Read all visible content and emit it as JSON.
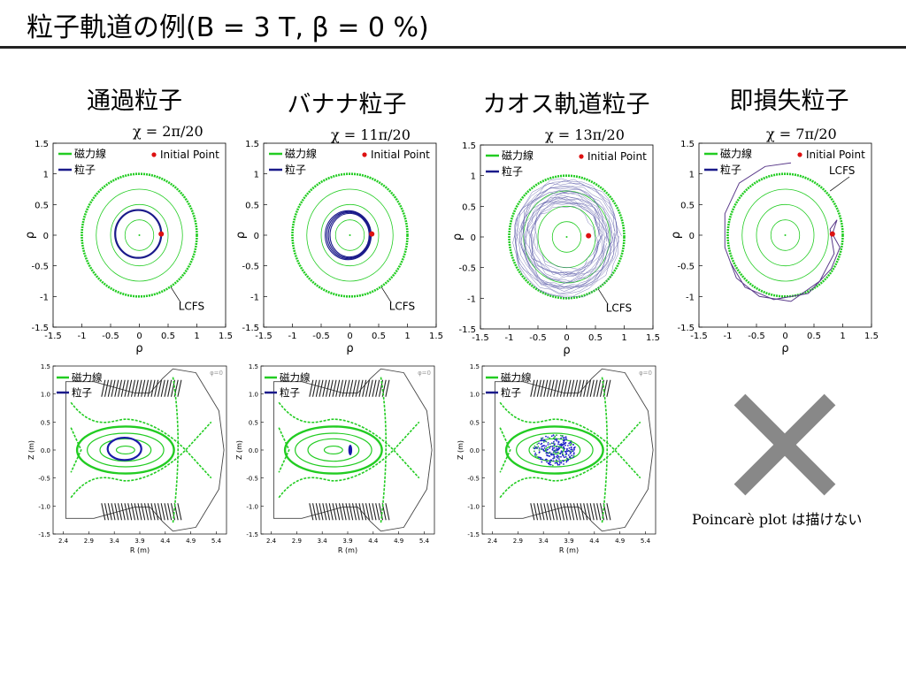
{
  "slide": {
    "title": "粒子軌道の例(B =  3 T, β = 0 %)",
    "column_titles": [
      "通過粒子",
      "バナナ粒子",
      "カオス軌道粒子",
      "即損失粒子"
    ],
    "pitch_labels": [
      "χ = 2π/20",
      "χ = 11π/20",
      "χ = 13π/20",
      "χ = 7π/20"
    ],
    "note": "Poincarè plot は描けない",
    "colors": {
      "field_line": "#22cc22",
      "particle": "#1a1a8a",
      "initial_point": "#dd1111",
      "cross": "#888888"
    }
  },
  "chart_data": [
    {
      "type": "scatter",
      "panel": "rho-plane",
      "xlabel": "ρ",
      "ylabel": "ρ",
      "xlim": [
        -1.5,
        1.5
      ],
      "ylim": [
        -1.5,
        1.5
      ],
      "xticks": [
        "-1.5",
        "-1",
        "-0.5",
        "0",
        "0.5",
        "1",
        "1.5"
      ],
      "yticks": [
        "1.5",
        "1",
        "0.5",
        "0",
        "-0.5",
        "-1",
        "-1.5"
      ],
      "legend": [
        "磁力線",
        "粒子",
        "Initial Point"
      ],
      "annotation": "LCFS",
      "field_line_radii": [
        0.25,
        0.5,
        0.75,
        1.0
      ],
      "initial_point": [
        0.38,
        0.02
      ],
      "orbit": "passing",
      "title": "χ = 2π/20"
    },
    {
      "type": "scatter",
      "panel": "rho-plane",
      "xlabel": "ρ",
      "ylabel": "ρ",
      "xlim": [
        -1.5,
        1.5
      ],
      "ylim": [
        -1.5,
        1.5
      ],
      "xticks": [
        "-1.5",
        "-1",
        "-0.5",
        "0",
        "0.5",
        "1",
        "1.5"
      ],
      "yticks": [
        "1.5",
        "1",
        "0.5",
        "0",
        "-0.5",
        "-1",
        "-1.5"
      ],
      "legend": [
        "磁力線",
        "粒子",
        "Initial Point"
      ],
      "annotation": "LCFS",
      "field_line_radii": [
        0.25,
        0.5,
        0.75,
        1.0
      ],
      "initial_point": [
        0.38,
        0.02
      ],
      "orbit": "banana",
      "title": "χ = 11π/20"
    },
    {
      "type": "scatter",
      "panel": "rho-plane",
      "xlabel": "ρ",
      "ylabel": "ρ",
      "xlim": [
        -1.5,
        1.5
      ],
      "ylim": [
        -1.5,
        1.5
      ],
      "xticks": [
        "-1.5",
        "-1",
        "-0.5",
        "0",
        "0.5",
        "1",
        "1.5"
      ],
      "yticks": [
        "1.5",
        "1",
        "0.5",
        "0",
        "-0.5",
        "-1",
        "-1.5"
      ],
      "legend": [
        "磁力線",
        "粒子",
        "Initial Point"
      ],
      "annotation": "LCFS",
      "field_line_radii": [
        0.25,
        0.5,
        0.75,
        1.0
      ],
      "initial_point": [
        0.38,
        0.02
      ],
      "orbit": "chaotic",
      "title": "χ = 13π/20"
    },
    {
      "type": "scatter",
      "panel": "rho-plane",
      "xlabel": "ρ",
      "ylabel": "ρ",
      "xlim": [
        -1.5,
        1.5
      ],
      "ylim": [
        -1.5,
        1.5
      ],
      "xticks": [
        "-1.5",
        "-1",
        "-0.5",
        "0",
        "0.5",
        "1",
        "1.5"
      ],
      "yticks": [
        "1.5",
        "1",
        "0.5",
        "0",
        "-0.5",
        "-1",
        "-1.5"
      ],
      "legend": [
        "磁力線",
        "粒子",
        "Initial Point"
      ],
      "annotation": "LCFS",
      "field_line_radii": [
        0.25,
        0.5,
        0.75,
        1.0
      ],
      "initial_point": [
        0.82,
        0.02
      ],
      "orbit": "prompt-loss",
      "title": "χ = 7π/20"
    },
    {
      "type": "scatter",
      "panel": "poincare",
      "xlabel": "R (m)",
      "ylabel": "Z (m)",
      "xlim": [
        2.2,
        5.6
      ],
      "ylim": [
        -1.5,
        1.5
      ],
      "xticks": [
        "2.4",
        "2.9",
        "3.4",
        "3.9",
        "4.4",
        "4.9",
        "5.4"
      ],
      "yticks": [
        "1.5",
        "1.0",
        "0.5",
        "0.0",
        "-0.5",
        "-1.0",
        "-1.5"
      ],
      "legend": [
        "磁力線",
        "粒子"
      ],
      "phi_label": "φ=0",
      "orbit": "passing"
    },
    {
      "type": "scatter",
      "panel": "poincare",
      "xlabel": "R (m)",
      "ylabel": "Z (m)",
      "xlim": [
        2.2,
        5.6
      ],
      "ylim": [
        -1.5,
        1.5
      ],
      "xticks": [
        "2.4",
        "2.9",
        "3.4",
        "3.9",
        "4.4",
        "4.9",
        "5.4"
      ],
      "yticks": [
        "1.5",
        "1.0",
        "0.5",
        "0.0",
        "-0.5",
        "-1.0",
        "-1.5"
      ],
      "legend": [
        "磁力線",
        "粒子"
      ],
      "phi_label": "φ=0",
      "orbit": "banana"
    },
    {
      "type": "scatter",
      "panel": "poincare",
      "xlabel": "R (m)",
      "ylabel": "Z (m)",
      "xlim": [
        2.2,
        5.6
      ],
      "ylim": [
        -1.5,
        1.5
      ],
      "xticks": [
        "2.4",
        "2.9",
        "3.4",
        "3.9",
        "4.4",
        "4.9",
        "5.4"
      ],
      "yticks": [
        "1.5",
        "1.0",
        "0.5",
        "0.0",
        "-0.5",
        "-1.0",
        "-1.5"
      ],
      "legend": [
        "磁力線",
        "粒子"
      ],
      "phi_label": "φ=0",
      "orbit": "chaotic"
    }
  ]
}
